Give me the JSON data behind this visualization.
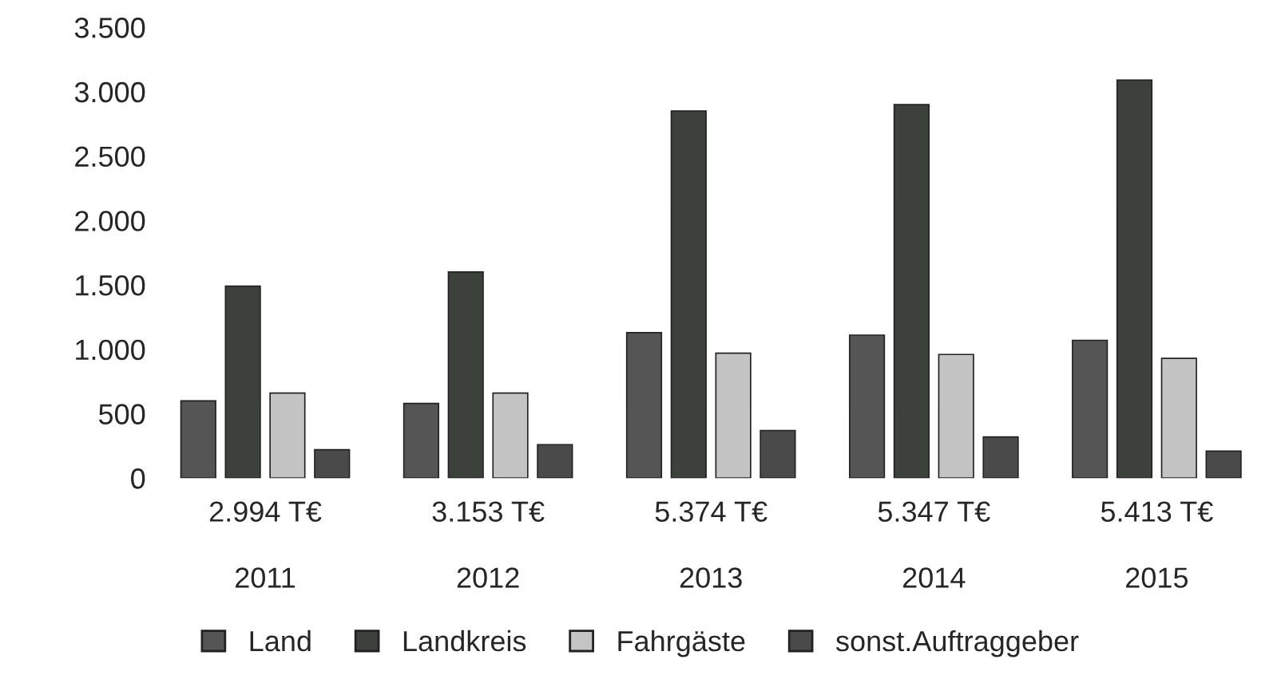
{
  "chart_data": {
    "type": "bar",
    "categories": [
      "2011",
      "2012",
      "2013",
      "2014",
      "2015"
    ],
    "series": [
      {
        "name": "Land",
        "color": "#555555",
        "values": [
          600,
          580,
          1130,
          1110,
          1070
        ]
      },
      {
        "name": "Landkreis",
        "color": "#3c413c",
        "values": [
          1490,
          1600,
          2850,
          2900,
          3090
        ]
      },
      {
        "name": "Fahrgäste",
        "color": "#c4c4c4",
        "values": [
          660,
          660,
          970,
          960,
          930
        ]
      },
      {
        "name": "sonst.Auftraggeber",
        "color": "#4a4a4a",
        "values": [
          220,
          260,
          370,
          320,
          210
        ]
      }
    ],
    "annotations": [
      "2.994 T€",
      "3.153 T€",
      "5.374 T€",
      "5.347 T€",
      "5.413 T€"
    ],
    "ylim": [
      0,
      3500
    ],
    "yticks": [
      {
        "value": 0,
        "label": "0"
      },
      {
        "value": 500,
        "label": "500"
      },
      {
        "value": 1000,
        "label": "1.000"
      },
      {
        "value": 1500,
        "label": "1.500"
      },
      {
        "value": 2000,
        "label": "2.000"
      },
      {
        "value": 2500,
        "label": "2.500"
      },
      {
        "value": 3000,
        "label": "3.000"
      },
      {
        "value": 3500,
        "label": "3.500"
      }
    ],
    "grid": false,
    "legend": "bottom"
  }
}
